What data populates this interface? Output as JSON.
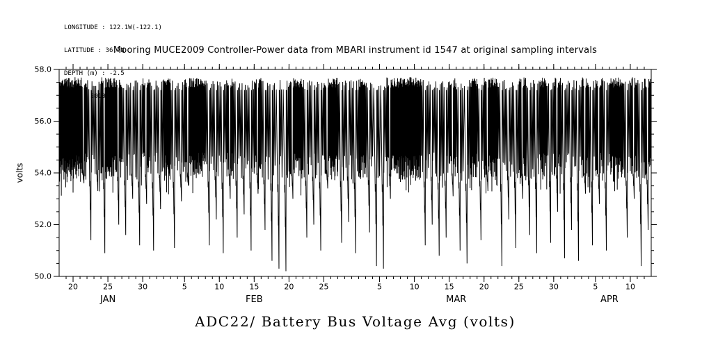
{
  "meta": {
    "longitude": "LONGITUDE : 122.1W(-122.1)",
    "latitude": "LATITUDE : 36.7N",
    "depth": "DEPTH (m) : -2.5",
    "year": "YEAR : 2010"
  },
  "colors": {
    "line": "#000000",
    "background": "#ffffff",
    "text": "#000000"
  },
  "chart_data": {
    "type": "line",
    "title": "Mooring MUCE2009 Controller-Power data from MBARI instrument id 1547 at original sampling intervals",
    "bottom_title": "ADC22/ Battery Bus Voltage Avg (volts)",
    "ylabel": "volts",
    "series_name": "ADC22 Battery Bus Voltage Avg",
    "units": "volts",
    "ylim": [
      50.0,
      58.0
    ],
    "y_major_ticks": [
      "50.0",
      "52.0",
      "54.0",
      "56.0",
      "58.0"
    ],
    "y_minor_step": 0.5,
    "x_domain_days": [
      18,
      103
    ],
    "x_minor_step_days": 1,
    "x_major_ticks": [
      {
        "day": 20,
        "label": "20"
      },
      {
        "day": 25,
        "label": "25"
      },
      {
        "day": 30,
        "label": "30"
      },
      {
        "day": 36,
        "label": "5"
      },
      {
        "day": 41,
        "label": "10"
      },
      {
        "day": 46,
        "label": "15"
      },
      {
        "day": 51,
        "label": "20"
      },
      {
        "day": 56,
        "label": "25"
      },
      {
        "day": 64,
        "label": "5"
      },
      {
        "day": 69,
        "label": "10"
      },
      {
        "day": 74,
        "label": "15"
      },
      {
        "day": 79,
        "label": "20"
      },
      {
        "day": 84,
        "label": "25"
      },
      {
        "day": 89,
        "label": "30"
      },
      {
        "day": 95,
        "label": "5"
      },
      {
        "day": 100,
        "label": "10"
      }
    ],
    "month_labels": [
      {
        "label": "JAN",
        "day": 25
      },
      {
        "label": "FEB",
        "day": 46
      },
      {
        "label": "MAR",
        "day": 75
      },
      {
        "label": "APR",
        "day": 97
      }
    ],
    "day_record_format": [
      "day_of_year_2010",
      "daily_max_volts",
      "oscillation_floor_volts",
      "dip_min_volts_or_null",
      "charge_cycles_per_day"
    ],
    "days": [
      [
        18,
        57.7,
        54.0,
        null,
        16
      ],
      [
        19,
        57.7,
        53.9,
        null,
        16
      ],
      [
        20,
        57.7,
        54.0,
        null,
        16
      ],
      [
        21,
        57.7,
        54.1,
        53.6,
        14
      ],
      [
        22,
        57.6,
        54.0,
        51.4,
        6
      ],
      [
        23,
        57.6,
        54.1,
        53.3,
        5
      ],
      [
        24,
        57.7,
        54.0,
        50.9,
        10
      ],
      [
        25,
        57.7,
        54.0,
        null,
        14
      ],
      [
        26,
        57.7,
        54.1,
        52.0,
        12
      ],
      [
        27,
        57.6,
        54.0,
        51.6,
        5
      ],
      [
        28,
        57.6,
        54.1,
        53.0,
        5
      ],
      [
        29,
        57.6,
        54.0,
        51.2,
        5
      ],
      [
        30,
        57.7,
        54.1,
        52.8,
        12
      ],
      [
        31,
        57.6,
        54.0,
        51.0,
        5
      ],
      [
        32,
        57.6,
        54.1,
        52.6,
        5
      ],
      [
        33,
        57.7,
        54.0,
        null,
        14
      ],
      [
        34,
        57.6,
        54.0,
        51.1,
        6
      ],
      [
        35,
        57.6,
        54.1,
        52.9,
        5
      ],
      [
        36,
        57.7,
        54.0,
        53.5,
        12
      ],
      [
        37,
        57.7,
        54.0,
        null,
        16
      ],
      [
        38,
        57.7,
        54.1,
        null,
        16
      ],
      [
        39,
        57.6,
        54.0,
        51.2,
        5
      ],
      [
        40,
        57.6,
        54.1,
        52.2,
        5
      ],
      [
        41,
        57.6,
        54.0,
        50.9,
        6
      ],
      [
        42,
        57.7,
        54.1,
        53.0,
        12
      ],
      [
        43,
        57.6,
        54.0,
        51.5,
        5
      ],
      [
        44,
        57.6,
        54.1,
        52.4,
        5
      ],
      [
        45,
        57.6,
        54.0,
        51.0,
        5
      ],
      [
        46,
        57.7,
        54.1,
        53.2,
        12
      ],
      [
        47,
        57.6,
        54.0,
        51.8,
        5
      ],
      [
        48,
        57.6,
        54.0,
        50.6,
        5
      ],
      [
        49,
        57.6,
        54.0,
        50.3,
        4
      ],
      [
        50,
        57.6,
        54.0,
        50.2,
        4
      ],
      [
        51,
        57.7,
        54.1,
        53.0,
        12
      ],
      [
        52,
        57.7,
        54.0,
        null,
        14
      ],
      [
        53,
        57.6,
        54.0,
        51.5,
        5
      ],
      [
        54,
        57.6,
        54.1,
        52.0,
        5
      ],
      [
        55,
        57.6,
        54.0,
        51.0,
        5
      ],
      [
        56,
        57.7,
        54.1,
        53.4,
        12
      ],
      [
        57,
        57.7,
        54.0,
        null,
        16
      ],
      [
        58,
        57.6,
        54.0,
        51.3,
        5
      ],
      [
        59,
        57.6,
        54.1,
        52.1,
        5
      ],
      [
        60,
        57.6,
        54.0,
        50.9,
        5
      ],
      [
        61,
        57.7,
        54.1,
        null,
        14
      ],
      [
        62,
        57.6,
        54.0,
        51.7,
        5
      ],
      [
        63,
        57.6,
        54.0,
        50.4,
        4
      ],
      [
        64,
        57.6,
        54.0,
        50.3,
        4
      ],
      [
        65,
        57.7,
        54.1,
        53.0,
        12
      ],
      [
        66,
        57.7,
        54.0,
        null,
        16
      ],
      [
        67,
        57.7,
        54.0,
        null,
        16
      ],
      [
        68,
        57.7,
        54.1,
        null,
        16
      ],
      [
        69,
        57.7,
        54.0,
        null,
        16
      ],
      [
        70,
        57.6,
        54.0,
        51.2,
        5
      ],
      [
        71,
        57.6,
        54.1,
        52.0,
        5
      ],
      [
        72,
        57.6,
        54.0,
        50.8,
        5
      ],
      [
        73,
        57.6,
        54.0,
        51.5,
        5
      ],
      [
        74,
        57.7,
        54.1,
        53.1,
        12
      ],
      [
        75,
        57.6,
        54.0,
        51.0,
        5
      ],
      [
        76,
        57.6,
        54.0,
        50.5,
        4
      ],
      [
        77,
        57.7,
        54.1,
        null,
        14
      ],
      [
        78,
        57.6,
        54.0,
        51.4,
        5
      ],
      [
        79,
        57.7,
        54.1,
        53.3,
        14
      ],
      [
        80,
        57.7,
        54.0,
        null,
        16
      ],
      [
        81,
        57.6,
        54.0,
        50.4,
        5
      ],
      [
        82,
        57.6,
        54.1,
        52.2,
        5
      ],
      [
        83,
        57.6,
        54.0,
        51.1,
        5
      ],
      [
        84,
        57.7,
        54.1,
        53.0,
        12
      ],
      [
        85,
        57.6,
        54.0,
        51.6,
        5
      ],
      [
        86,
        57.6,
        54.0,
        50.9,
        5
      ],
      [
        87,
        57.7,
        54.1,
        null,
        14
      ],
      [
        88,
        57.6,
        54.0,
        51.3,
        5
      ],
      [
        89,
        57.7,
        54.1,
        52.5,
        12
      ],
      [
        90,
        57.6,
        54.0,
        50.7,
        5
      ],
      [
        91,
        57.6,
        54.1,
        51.8,
        5
      ],
      [
        92,
        57.6,
        54.0,
        50.6,
        5
      ],
      [
        93,
        57.7,
        54.1,
        53.2,
        12
      ],
      [
        94,
        57.6,
        54.0,
        51.2,
        5
      ],
      [
        95,
        57.7,
        54.1,
        52.8,
        12
      ],
      [
        96,
        57.6,
        54.0,
        51.0,
        5
      ],
      [
        97,
        57.7,
        54.1,
        null,
        16
      ],
      [
        98,
        57.7,
        54.0,
        null,
        16
      ],
      [
        99,
        57.6,
        54.0,
        51.5,
        5
      ],
      [
        100,
        57.7,
        54.1,
        53.0,
        12
      ],
      [
        101,
        57.6,
        54.0,
        50.4,
        6
      ],
      [
        102,
        57.7,
        54.0,
        51.8,
        12
      ]
    ]
  }
}
